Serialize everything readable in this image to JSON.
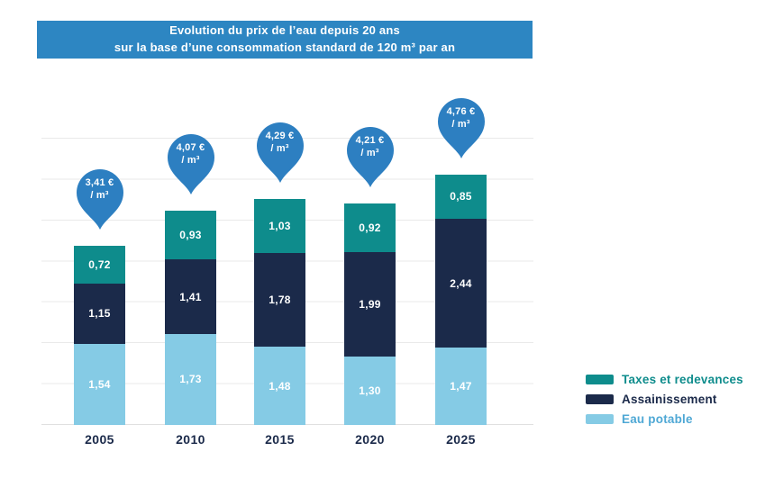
{
  "banner": {
    "line1": "Evolution du prix de l’eau depuis 20 ans",
    "line2": "sur la base d’une consommation standard de 120 m³ par an",
    "bg_color": "#2d86c2"
  },
  "chart_data": {
    "type": "bar",
    "stacked": true,
    "title": "Evolution du prix de l’eau depuis 20 ans sur la base d’une consommation standard de 120 m³ par an",
    "categories": [
      "2005",
      "2010",
      "2015",
      "2020",
      "2025"
    ],
    "series": [
      {
        "name": "Eau potable",
        "color": "#85cbe5",
        "values": [
          1.54,
          1.73,
          1.48,
          1.3,
          1.47
        ]
      },
      {
        "name": "Assainissement",
        "color": "#1b2a4a",
        "values": [
          1.15,
          1.41,
          1.78,
          1.99,
          2.44
        ]
      },
      {
        "name": "Taxes et redevances",
        "color": "#0e8c8c",
        "values": [
          0.72,
          0.93,
          1.03,
          0.92,
          0.85
        ]
      }
    ],
    "totals_eur_per_m3": [
      3.41,
      4.07,
      4.29,
      4.21,
      4.76
    ],
    "unit": "€ / m³",
    "ylim": [
      0,
      5
    ],
    "grid": true,
    "legend_position": "right"
  },
  "bars": [
    {
      "year": "2005",
      "eau": "1,54",
      "assainissement": "1,15",
      "taxes": "0,72",
      "pin_price": "3,41 €",
      "pin_unit": "/ m³"
    },
    {
      "year": "2010",
      "eau": "1,73",
      "assainissement": "1,41",
      "taxes": "0,93",
      "pin_price": "4,07 €",
      "pin_unit": "/ m³"
    },
    {
      "year": "2015",
      "eau": "1,48",
      "assainissement": "1,78",
      "taxes": "1,03",
      "pin_price": "4,29 €",
      "pin_unit": "/ m³"
    },
    {
      "year": "2020",
      "eau": "1,30",
      "assainissement": "1,99",
      "taxes": "0,92",
      "pin_price": "4,21 €",
      "pin_unit": "/ m³"
    },
    {
      "year": "2025",
      "eau": "1,47",
      "assainissement": "2,44",
      "taxes": "0,85",
      "pin_price": "4,76 €",
      "pin_unit": "/ m³"
    }
  ],
  "legend": {
    "items": [
      {
        "label": "Taxes et redevances",
        "swatch_color": "#0e8c8c",
        "text_color": "#0e8c8c"
      },
      {
        "label": "Assainissement",
        "swatch_color": "#1b2a4a",
        "text_color": "#1b2a4a"
      },
      {
        "label": "Eau potable",
        "swatch_color": "#85cbe5",
        "text_color": "#4fa8d5"
      }
    ]
  },
  "colors": {
    "banner_blue": "#2d86c2",
    "pin_blue": "#2d7fc1",
    "taxes_teal": "#0e8c8c",
    "assainissement_navy": "#1b2a4a",
    "eau_light_blue": "#85cbe5",
    "gridline_gray": "#e9e9e9"
  }
}
